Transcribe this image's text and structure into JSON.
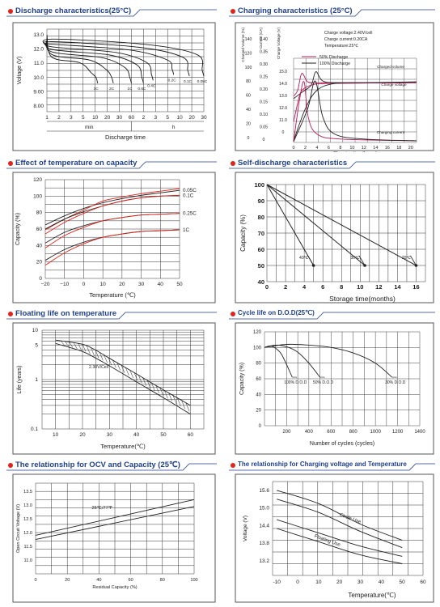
{
  "panels": [
    {
      "title": "Discharge characteristics(25°C)"
    },
    {
      "title": "Charging characteristics (25°C)"
    },
    {
      "title": "Effect of temperature on capacity"
    },
    {
      "title": "Self-discharge characteristics"
    },
    {
      "title": "Floating life on temperature"
    },
    {
      "title": "Cycle life on D.O.D(25℃)"
    },
    {
      "title": "The relationship  for OCV and Capacity (25℃)"
    },
    {
      "title": "The relationship for Charging voltage and Temperature"
    }
  ],
  "colors": {
    "title": "#1f3f8c",
    "accent": "#e2231a",
    "line": "#1a1a1a",
    "red_series": "#e2231a",
    "magenta_series": "#b3195a"
  },
  "chart_data": [
    {
      "id": "discharge",
      "type": "line",
      "ylabel": "Voltage (V)",
      "xlabel": "Discharge time",
      "x_unit_labels": [
        "min",
        "h"
      ],
      "y_ticks": [
        "13.0",
        "12.0",
        "11.0",
        "10.0",
        "9.00",
        "8.00"
      ],
      "ylim": [
        7.6,
        13.4
      ],
      "x_ticks": [
        "1",
        "2",
        "3",
        "5",
        "10",
        "20",
        "30",
        "60",
        "2",
        "3",
        "5",
        "10",
        "20",
        "30"
      ],
      "series": [
        {
          "name": "3C",
          "end_x": 4.2,
          "end_v": 9.6
        },
        {
          "name": "2C",
          "end_x": 5.5,
          "end_v": 9.6
        },
        {
          "name": "1C",
          "end_x": 7.0,
          "end_v": 9.6
        },
        {
          "name": "0.6C",
          "end_x": 8.0,
          "end_v": 9.6
        },
        {
          "name": "0.4C",
          "end_x": 8.8,
          "end_v": 9.8
        },
        {
          "name": "0.2C",
          "end_x": 10.5,
          "end_v": 10.2
        },
        {
          "name": "0.1C",
          "end_x": 11.8,
          "end_v": 10.1
        },
        {
          "name": "0.05C",
          "end_x": 13.0,
          "end_v": 10.1
        }
      ]
    },
    {
      "id": "charging",
      "type": "line",
      "xlabel": "Charging time(hours)",
      "axis_headers": [
        "Charged Volume (%)",
        "Current (CA)",
        "Charge Voltage (V)"
      ],
      "notes": [
        "Charge voltage:2.40V/cell",
        "Charge current:0.20CA",
        "Temperature:25℃"
      ],
      "legend": [
        "50% Discharge",
        "100% Discharge"
      ],
      "annotations": [
        "Charged volume",
        "Charge voltage",
        "Charging current"
      ],
      "y1_ticks": [
        "140",
        "120",
        "100",
        "80",
        "60",
        "40",
        "20",
        "0"
      ],
      "y2_ticks": [
        "0.40",
        "0.35",
        "0.30",
        "0.25",
        "0.20",
        "0.15",
        "0.10",
        "0.05",
        "0"
      ],
      "y3_ticks": [
        "15.0",
        "14.0",
        "13.0",
        "12.0",
        "11.0",
        "0"
      ],
      "x_ticks": [
        "0",
        "2",
        "4",
        "6",
        "8",
        "10",
        "12",
        "14",
        "16",
        "18",
        "20"
      ],
      "xlim": [
        0,
        21
      ]
    },
    {
      "id": "temperature",
      "type": "line",
      "xlabel": "Temperature (℃)",
      "ylabel": "Capacity (%)",
      "xlim": [
        -20,
        50
      ],
      "ylim": [
        0,
        120
      ],
      "x_ticks": [
        "−20",
        "−10",
        "0",
        "10",
        "20",
        "30",
        "40",
        "50"
      ],
      "y_ticks": [
        "120",
        "100",
        "80",
        "60",
        "40",
        "20",
        "0"
      ],
      "series": [
        {
          "name": "0.05C",
          "x": [
            -20,
            -10,
            0,
            10,
            20,
            30,
            40,
            50
          ],
          "y": [
            65,
            76,
            85,
            92,
            97,
            101,
            104,
            107
          ]
        },
        {
          "name": "0.1C",
          "x": [
            -20,
            -10,
            0,
            10,
            20,
            30,
            40,
            50
          ],
          "y": [
            60,
            72,
            81,
            88,
            94,
            98,
            100,
            101
          ]
        },
        {
          "name": "0.25C",
          "x": [
            -20,
            -10,
            0,
            10,
            20,
            30,
            40,
            50
          ],
          "y": [
            43,
            56,
            64,
            70,
            74,
            77,
            78,
            79
          ]
        },
        {
          "name": "1C",
          "x": [
            -20,
            -10,
            0,
            10,
            20,
            30,
            40,
            50
          ],
          "y": [
            22,
            35,
            44,
            50,
            54,
            57,
            58,
            59
          ]
        }
      ]
    },
    {
      "id": "selfdischarge",
      "type": "line",
      "xlabel": "Storage time(months)",
      "ylabel": "Capacity (%)",
      "xlim": [
        0,
        17
      ],
      "ylim": [
        40,
        100
      ],
      "x_ticks": [
        "0",
        "2",
        "4",
        "6",
        "8",
        "10",
        "12",
        "14",
        "16"
      ],
      "y_ticks": [
        "100",
        "90",
        "80",
        "70",
        "60",
        "50",
        "40"
      ],
      "series": [
        {
          "name": "40℃",
          "x": [
            0,
            5
          ],
          "y": [
            100,
            50
          ]
        },
        {
          "name": "30℃",
          "x": [
            0,
            10.5
          ],
          "y": [
            100,
            50
          ]
        },
        {
          "name": "20℃",
          "x": [
            0,
            16
          ],
          "y": [
            100,
            50
          ]
        }
      ]
    },
    {
      "id": "floatlife",
      "type": "line",
      "xlabel": "Temperature(℃)",
      "ylabel": "Life (years)",
      "xlim": [
        5,
        65
      ],
      "y_scale": "log",
      "ylim": [
        0.1,
        10
      ],
      "x_ticks": [
        "10",
        "20",
        "30",
        "40",
        "50",
        "60"
      ],
      "y_ticks": [
        "10",
        "5",
        "1",
        "0.1"
      ],
      "annotation": "2.30V/Cell",
      "series": [
        {
          "name": "upper",
          "x": [
            10,
            20,
            25,
            30,
            40,
            50,
            60
          ],
          "y": [
            6.3,
            5.2,
            3.9,
            2.7,
            1.3,
            0.62,
            0.3
          ]
        },
        {
          "name": "lower",
          "x": [
            10,
            20,
            25,
            30,
            40,
            50,
            60
          ],
          "y": [
            5.4,
            3.7,
            2.7,
            1.9,
            0.9,
            0.43,
            0.2
          ]
        }
      ]
    },
    {
      "id": "cyclelife",
      "type": "line",
      "xlabel": "Number of cycles (cycles)",
      "ylabel": "Capacity (%)",
      "xlim": [
        0,
        1400
      ],
      "ylim": [
        0,
        120
      ],
      "x_ticks": [
        "200",
        "400",
        "600",
        "800",
        "1000",
        "1200",
        "1400"
      ],
      "y_ticks": [
        "120",
        "100",
        "80",
        "60",
        "40",
        "20",
        "0"
      ],
      "series": [
        {
          "name": "100% D.O.D",
          "x": [
            0,
            50,
            100,
            150,
            200,
            250
          ],
          "y": [
            100,
            102,
            99,
            92,
            78,
            62
          ]
        },
        {
          "name": "50% D.O.D",
          "x": [
            0,
            100,
            200,
            300,
            400,
            500
          ],
          "y": [
            100,
            103,
            101,
            94,
            80,
            62
          ]
        },
        {
          "name": "30% D.O.D",
          "x": [
            0,
            200,
            400,
            600,
            800,
            1000,
            1150
          ],
          "y": [
            100,
            104,
            103,
            100,
            93,
            80,
            62
          ]
        }
      ]
    },
    {
      "id": "ocv",
      "type": "line",
      "xlabel": "Residual Capacity (%)",
      "ylabel": "Open Circuit Voltage (V)",
      "xlim": [
        0,
        100
      ],
      "ylim": [
        10.5,
        13.8
      ],
      "x_ticks": [
        "0",
        "20",
        "40",
        "60",
        "80",
        "100"
      ],
      "y_ticks": [
        "13.5",
        "13.0",
        "12.5",
        "12.0",
        "11.5",
        "11.0"
      ],
      "annotation": "25℃/77℉",
      "series": [
        {
          "name": "upper",
          "x": [
            0,
            100
          ],
          "y": [
            11.9,
            13.2
          ]
        },
        {
          "name": "lower",
          "x": [
            0,
            100
          ],
          "y": [
            11.75,
            12.95
          ]
        }
      ]
    },
    {
      "id": "chargevoltage",
      "type": "line",
      "xlabel": "Temperature(℃)",
      "ylabel": "Voltage (V)",
      "xlim": [
        -12,
        60
      ],
      "ylim": [
        12.7,
        15.9
      ],
      "x_ticks": [
        "-10",
        "0",
        "10",
        "20",
        "30",
        "40",
        "50",
        "60"
      ],
      "y_ticks": [
        "15.6",
        "15.0",
        "14.4",
        "13.8",
        "13.2"
      ],
      "annotations": [
        "Circle Use",
        "Floating Use"
      ],
      "series": [
        {
          "name": "cycle-upper",
          "x": [
            -10,
            10,
            30,
            50
          ],
          "y": [
            15.6,
            15.15,
            14.45,
            13.9
          ]
        },
        {
          "name": "cycle-lower",
          "x": [
            -10,
            10,
            30,
            50
          ],
          "y": [
            15.3,
            14.85,
            14.2,
            13.65
          ]
        },
        {
          "name": "float-upper",
          "x": [
            -10,
            10,
            30,
            50
          ],
          "y": [
            14.6,
            14.15,
            13.7,
            13.35
          ]
        },
        {
          "name": "float-lower",
          "x": [
            -10,
            10,
            30,
            50
          ],
          "y": [
            14.3,
            13.85,
            13.4,
            13.1
          ]
        }
      ]
    }
  ]
}
